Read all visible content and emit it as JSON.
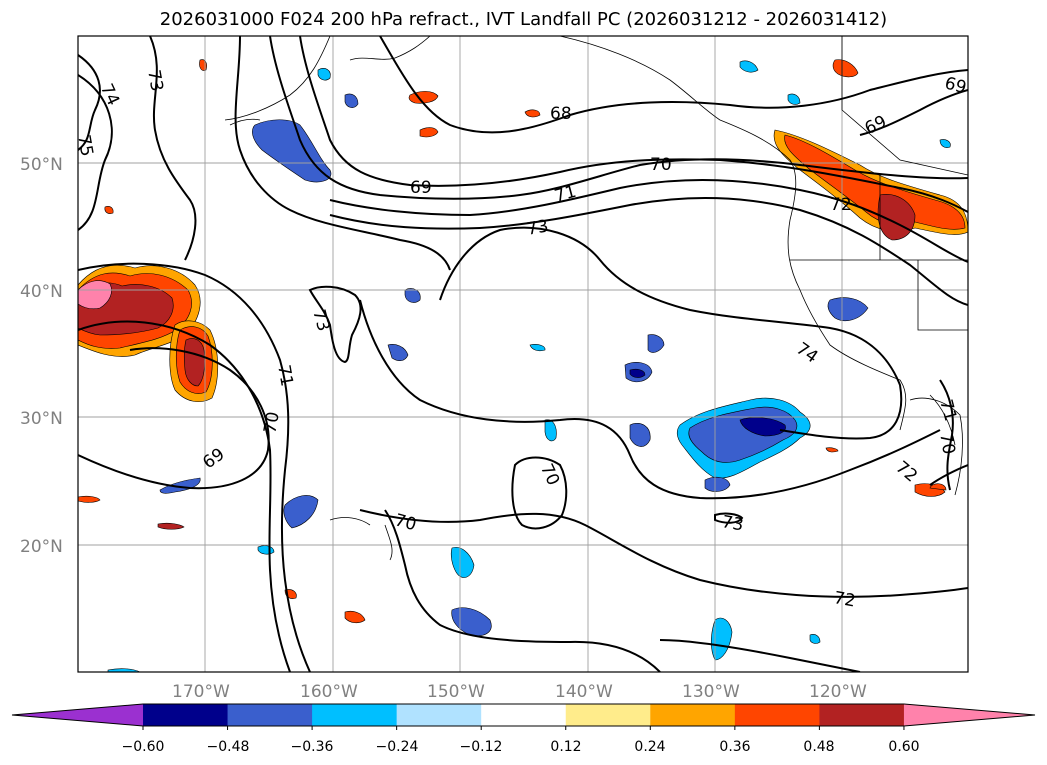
{
  "title": "2026031000 F024 200 hPa refract., IVT Landfall PC (2026031212 - 2026031412)",
  "map": {
    "lat_labels": [
      "50°N",
      "40°N",
      "30°N",
      "20°N"
    ],
    "lon_labels": [
      "170°W",
      "160°W",
      "150°W",
      "140°W",
      "130°W",
      "120°W"
    ],
    "contour_labels": [
      "73",
      "74",
      "75",
      "68",
      "69",
      "70",
      "71",
      "72",
      "73",
      "69",
      "69",
      "73",
      "71",
      "70",
      "69",
      "70",
      "70",
      "73",
      "72",
      "74",
      "71",
      "70",
      "72",
      "69"
    ]
  },
  "colorbar": {
    "ticks": [
      "−0.60",
      "−0.48",
      "−0.36",
      "−0.24",
      "−0.12",
      "0.12",
      "0.24",
      "0.36",
      "0.48",
      "0.60"
    ],
    "colors": [
      "#9b30d0",
      "#00008b",
      "#3a5fcd",
      "#00bfff",
      "#b0e2ff",
      "#ffffff",
      "#ffec8b",
      "#ffa500",
      "#ff4500",
      "#b22222",
      "#ff82ab"
    ]
  },
  "shading_colors": {
    "pos_strong": "#b22222",
    "pos_mid": "#ff4500",
    "pos_low": "#ffa500",
    "pos_edge": "#ffec8b",
    "pos_max": "#ff82ab",
    "neg_strong": "#00008b",
    "neg_mid": "#3a5fcd",
    "neg_low": "#00bfff",
    "neg_edge": "#b0e2ff"
  }
}
